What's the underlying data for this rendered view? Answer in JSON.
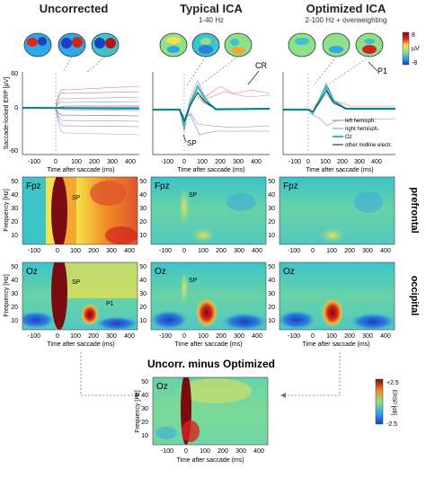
{
  "columns": [
    {
      "title": "Uncorrected",
      "subtitle": ""
    },
    {
      "title": "Typical ICA",
      "subtitle": "1-40 Hz"
    },
    {
      "title": "Optimized ICA",
      "subtitle": "2-100 Hz + overweighting"
    }
  ],
  "row_labels": {
    "prefrontal": "prefrontal",
    "occipital": "occipital"
  },
  "bottom_title": "Uncorr. minus Optimized",
  "erp_axis": {
    "ylabel": "Saccade-locked ERP [µV]",
    "xlabel": "Time after saccade (ms)",
    "xticks": [
      "-100",
      "0",
      "100",
      "200",
      "300",
      "400"
    ],
    "yticks": [
      "-60",
      "0",
      "60"
    ]
  },
  "tf_axis": {
    "ylabel": "Frequency [Hz]",
    "xlabel": "Time after saccade (ms)",
    "xticks": [
      "-100",
      "0",
      "100",
      "200",
      "300",
      "400"
    ],
    "yticks": [
      "10",
      "20",
      "30",
      "40",
      "50"
    ]
  },
  "erp_legend": [
    "left hemisph.",
    "right hemisph.",
    "Oz",
    "other midline electr."
  ],
  "topo_colorbar": {
    "top": "8",
    "unit": "µV",
    "bottom": "-8"
  },
  "tf_colorbar": {
    "top": "+2.5",
    "label": "ERSP [dB]",
    "bottom": "-2.5"
  },
  "annotations": {
    "sp": "SP",
    "cr": "CR",
    "p1": "P1",
    "fpz": "Fpz",
    "oz": "Oz"
  },
  "colors": {
    "blue": "#1d3fbf",
    "cyan": "#2fd0e8",
    "green": "#8fe08a",
    "yellow": "#f5e24a",
    "orange": "#f08a24",
    "red": "#b1151e",
    "dark_red": "#7a0b10",
    "teal": "#1fc4c8"
  },
  "chart_data": [
    {
      "type": "line",
      "panel": "erp-uncorrected",
      "x": [
        -100,
        0,
        100,
        200,
        300,
        400
      ],
      "series": [
        {
          "name": "Oz",
          "values": [
            0,
            0,
            5,
            6,
            5,
            5
          ]
        }
      ],
      "xlabel": "Time after saccade (ms)",
      "ylabel": "Saccade-locked ERP [µV]",
      "ylim": [
        -60,
        60
      ]
    },
    {
      "type": "line",
      "panel": "erp-typical-ica",
      "x": [
        -100,
        0,
        100,
        200,
        300,
        400
      ],
      "series": [
        {
          "name": "Oz",
          "values": [
            0,
            -8,
            22,
            4,
            2,
            2
          ]
        }
      ],
      "xlabel": "Time after saccade (ms)",
      "ylabel": "",
      "ylim": [
        -60,
        60
      ]
    },
    {
      "type": "line",
      "panel": "erp-optimized-ica",
      "x": [
        -100,
        0,
        100,
        200,
        300,
        400
      ],
      "series": [
        {
          "name": "Oz",
          "values": [
            0,
            -2,
            20,
            3,
            2,
            2
          ]
        }
      ],
      "xlabel": "Time after saccade (ms)",
      "ylabel": "",
      "ylim": [
        -60,
        60
      ]
    },
    {
      "type": "heatmap",
      "panel": "tf-grid",
      "rows": [
        "Fpz",
        "Oz"
      ],
      "columns": [
        "Uncorrected",
        "Typical ICA",
        "Optimized ICA"
      ],
      "xlim": [
        -150,
        450
      ],
      "ylim": [
        2,
        55
      ],
      "xlabel": "Time after saccade (ms)",
      "ylabel": "Frequency [Hz]"
    },
    {
      "type": "heatmap",
      "panel": "tf-difference",
      "channel": "Oz",
      "xlim": [
        -150,
        450
      ],
      "ylim": [
        2,
        55
      ],
      "clim": [
        -2.5,
        2.5
      ],
      "xlabel": "Time after saccade (ms)",
      "ylabel": "Frequency [Hz]"
    }
  ]
}
